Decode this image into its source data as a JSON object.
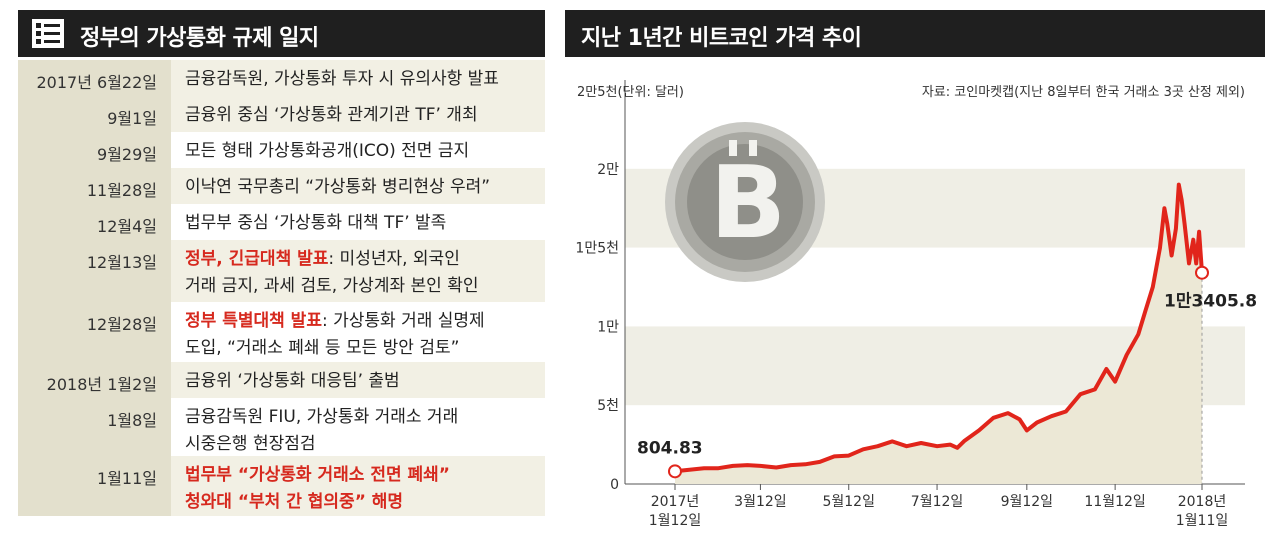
{
  "left_panel": {
    "title": "정부의 가상통화 규제 일지",
    "icon": "list-icon",
    "rows": [
      {
        "date": "2017년 6월22일",
        "text": "금융감독원, 가상통화 투자 시 유의사항 발표",
        "highlight": "",
        "shade": true
      },
      {
        "date": "9월1일",
        "text": "금융위 중심 ‘가상통화 관계기관 TF’ 개최",
        "highlight": "",
        "shade": true
      },
      {
        "date": "9월29일",
        "text": "모든 형태 가상통화공개(ICO) 전면 금지",
        "highlight": "",
        "shade": false
      },
      {
        "date": "11월28일",
        "text": "이낙연 국무총리 “가상통화 병리현상 우려”",
        "highlight": "",
        "shade": true
      },
      {
        "date": "12월4일",
        "text": "법무부 중심 ‘가상통화 대책 TF’ 발족",
        "highlight": "",
        "shade": false
      },
      {
        "date": "12월13일",
        "highlight": "정부, 긴급대책 발표",
        "text": ": 미성년자, 외국인",
        "text2": "거래 금지, 과세 검토, 가상계좌 본인 확인",
        "shade": true
      },
      {
        "date": "12월28일",
        "highlight": "정부 특별대책 발표",
        "text": ": 가상통화 거래 실명제",
        "text2": "도입, “거래소 폐쇄 등 모든 방안 검토”",
        "shade": false
      },
      {
        "date": "2018년 1월2일",
        "text": "금융위 ‘가상통화 대응팀’ 출범",
        "highlight": "",
        "shade": true
      },
      {
        "date": "1월8일",
        "text": "금융감독원 FIU, 가상통화 거래소 거래",
        "text2": "시중은행 현장점검",
        "highlight": "",
        "shade": false
      },
      {
        "date": "1월11일",
        "highlight": "법무부 “가상통화 거래소 전면 폐쇄”",
        "highlight2": "청와대 “부처 간 협의중” 해명",
        "text": "",
        "shade": true
      }
    ]
  },
  "right_panel": {
    "title": "지난 1년간 비트코인 가격 추이",
    "unit_label": "2만5천(단위: 달러)",
    "source_note": "자료: 코인마켓캡(지난 8일부터 한국 거래소 3곳 산정 제외)",
    "icon": "bitcoin-coin-icon",
    "start_label": "804.83",
    "end_label": "1만3405.8",
    "colors": {
      "line": "#e1251b",
      "fill": "#ece8d6",
      "band": "#efeee5"
    }
  },
  "chart_data": {
    "type": "line",
    "title": "지난 1년간 비트코인 가격 추이",
    "ylabel": "(단위: 달러)",
    "ylim": [
      0,
      25000
    ],
    "y_ticks": [
      {
        "value": 0,
        "label": "0"
      },
      {
        "value": 5000,
        "label": "5천"
      },
      {
        "value": 10000,
        "label": "1만"
      },
      {
        "value": 15000,
        "label": "1만5천"
      },
      {
        "value": 20000,
        "label": "2만"
      }
    ],
    "x_ticks": [
      {
        "label": "2017년",
        "label2": "1월12일",
        "t": 0
      },
      {
        "label": "3월12일",
        "label2": "",
        "t": 59
      },
      {
        "label": "5월12일",
        "label2": "",
        "t": 120
      },
      {
        "label": "7월12일",
        "label2": "",
        "t": 181
      },
      {
        "label": "9월12일",
        "label2": "",
        "t": 243
      },
      {
        "label": "11월12일",
        "label2": "",
        "t": 304
      },
      {
        "label": "2018년",
        "label2": "1월11일",
        "t": 364
      }
    ],
    "series": [
      {
        "values": [
          [
            0,
            805
          ],
          [
            10,
            900
          ],
          [
            20,
            1000
          ],
          [
            30,
            1000
          ],
          [
            40,
            1150
          ],
          [
            50,
            1200
          ],
          [
            59,
            1150
          ],
          [
            70,
            1050
          ],
          [
            80,
            1200
          ],
          [
            90,
            1250
          ],
          [
            100,
            1400
          ],
          [
            110,
            1750
          ],
          [
            120,
            1800
          ],
          [
            130,
            2200
          ],
          [
            140,
            2400
          ],
          [
            150,
            2700
          ],
          [
            160,
            2400
          ],
          [
            170,
            2600
          ],
          [
            181,
            2400
          ],
          [
            190,
            2500
          ],
          [
            195,
            2300
          ],
          [
            200,
            2750
          ],
          [
            210,
            3400
          ],
          [
            220,
            4200
          ],
          [
            230,
            4500
          ],
          [
            238,
            4100
          ],
          [
            243,
            3400
          ],
          [
            250,
            3900
          ],
          [
            260,
            4300
          ],
          [
            270,
            4600
          ],
          [
            280,
            5700
          ],
          [
            290,
            6000
          ],
          [
            298,
            7300
          ],
          [
            304,
            6500
          ],
          [
            312,
            8200
          ],
          [
            320,
            9500
          ],
          [
            325,
            11000
          ],
          [
            330,
            12500
          ],
          [
            335,
            15000
          ],
          [
            338,
            17500
          ],
          [
            340,
            16500
          ],
          [
            343,
            14500
          ],
          [
            346,
            16200
          ],
          [
            348,
            19000
          ],
          [
            350,
            18000
          ],
          [
            352,
            16500
          ],
          [
            355,
            14000
          ],
          [
            358,
            15500
          ],
          [
            360,
            14000
          ],
          [
            362,
            16000
          ],
          [
            364,
            13406
          ]
        ]
      }
    ],
    "annotations": [
      {
        "label": "804.83",
        "t": 0,
        "value": 805
      },
      {
        "label": "1만3405.8",
        "t": 364,
        "value": 13406
      }
    ]
  }
}
